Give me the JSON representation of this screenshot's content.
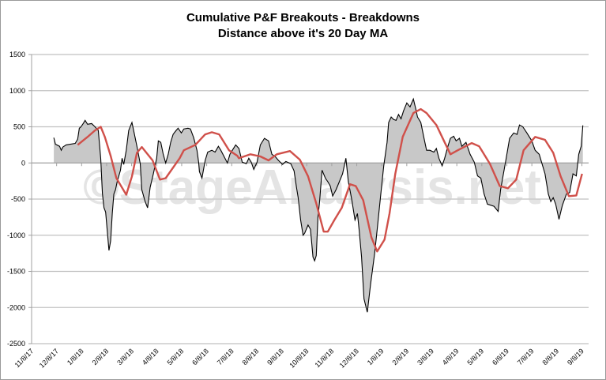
{
  "chart_data": {
    "type": "area",
    "title": "Cumulative P&F Breakouts - Breakdowns",
    "subtitle": "Distance above it's 20 Day MA",
    "watermark": "©StageAnalysis.net",
    "xlabel": "",
    "ylabel": "",
    "x_unit": "days since 11/8/17",
    "xlim": [
      0,
      677
    ],
    "ylim": [
      -2500,
      1500
    ],
    "yticks": [
      1500,
      1000,
      500,
      0,
      -500,
      -1000,
      -1500,
      -2000,
      -2500
    ],
    "xtick_labels": [
      "11/8/17",
      "12/8/17",
      "1/8/18",
      "2/8/18",
      "3/8/18",
      "4/8/18",
      "5/8/18",
      "6/8/18",
      "7/8/18",
      "8/8/18",
      "9/8/18",
      "10/8/18",
      "11/8/18",
      "12/8/18",
      "1/8/19",
      "2/8/19",
      "3/8/19",
      "4/8/19",
      "5/8/19",
      "6/8/19",
      "7/8/19",
      "8/8/19",
      "9/8/19"
    ],
    "xtick_spacing_days": 30.4,
    "grid": true,
    "legend": "none",
    "colors": {
      "series": "#000000",
      "fill": "#c8c8c8",
      "ma": "#d0504a",
      "grid": "#c0c0c0"
    },
    "series": [
      {
        "name": "Cumulative P&F Breakouts - Breakdowns",
        "points": [
          [
            27,
            350
          ],
          [
            29,
            260
          ],
          [
            34,
            230
          ],
          [
            36,
            175
          ],
          [
            38,
            220
          ],
          [
            42,
            250
          ],
          [
            53,
            270
          ],
          [
            56,
            330
          ],
          [
            58,
            480
          ],
          [
            60,
            500
          ],
          [
            63,
            550
          ],
          [
            65,
            590
          ],
          [
            68,
            535
          ],
          [
            73,
            545
          ],
          [
            77,
            500
          ],
          [
            81,
            450
          ],
          [
            84,
            60
          ],
          [
            86,
            -420
          ],
          [
            88,
            -620
          ],
          [
            90,
            -680
          ],
          [
            94,
            -1210
          ],
          [
            96,
            -1080
          ],
          [
            98,
            -700
          ],
          [
            100,
            -430
          ],
          [
            102,
            -370
          ],
          [
            104,
            -260
          ],
          [
            108,
            -100
          ],
          [
            110,
            65
          ],
          [
            112,
            -20
          ],
          [
            115,
            175
          ],
          [
            118,
            450
          ],
          [
            122,
            560
          ],
          [
            125,
            395
          ],
          [
            128,
            230
          ],
          [
            132,
            -10
          ],
          [
            134,
            -370
          ],
          [
            138,
            -535
          ],
          [
            141,
            -620
          ],
          [
            144,
            -340
          ],
          [
            148,
            -150
          ],
          [
            152,
            65
          ],
          [
            154,
            305
          ],
          [
            157,
            285
          ],
          [
            160,
            120
          ],
          [
            163,
            0
          ],
          [
            166,
            120
          ],
          [
            169,
            285
          ],
          [
            172,
            395
          ],
          [
            175,
            440
          ],
          [
            178,
            480
          ],
          [
            182,
            415
          ],
          [
            185,
            470
          ],
          [
            190,
            480
          ],
          [
            193,
            470
          ],
          [
            197,
            350
          ],
          [
            201,
            175
          ],
          [
            203,
            10
          ],
          [
            204,
            -120
          ],
          [
            207,
            -210
          ],
          [
            211,
            35
          ],
          [
            214,
            150
          ],
          [
            219,
            175
          ],
          [
            223,
            150
          ],
          [
            227,
            230
          ],
          [
            230,
            175
          ],
          [
            235,
            65
          ],
          [
            238,
            0
          ],
          [
            241,
            120
          ],
          [
            244,
            175
          ],
          [
            248,
            250
          ],
          [
            252,
            200
          ],
          [
            256,
            10
          ],
          [
            261,
            -10
          ],
          [
            264,
            65
          ],
          [
            267,
            10
          ],
          [
            270,
            -90
          ],
          [
            274,
            10
          ],
          [
            278,
            250
          ],
          [
            283,
            340
          ],
          [
            288,
            305
          ],
          [
            292,
            120
          ],
          [
            296,
            90
          ],
          [
            300,
            35
          ],
          [
            305,
            -20
          ],
          [
            309,
            20
          ],
          [
            315,
            -10
          ],
          [
            319,
            -110
          ],
          [
            322,
            -340
          ],
          [
            324,
            -480
          ],
          [
            327,
            -790
          ],
          [
            330,
            -1000
          ],
          [
            332,
            -970
          ],
          [
            336,
            -860
          ],
          [
            339,
            -920
          ],
          [
            342,
            -1300
          ],
          [
            344,
            -1355
          ],
          [
            346,
            -1280
          ],
          [
            348,
            -750
          ],
          [
            350,
            -535
          ],
          [
            353,
            -100
          ],
          [
            357,
            -210
          ],
          [
            360,
            -260
          ],
          [
            363,
            -320
          ],
          [
            366,
            -460
          ],
          [
            370,
            -370
          ],
          [
            374,
            -260
          ],
          [
            378,
            -150
          ],
          [
            382,
            65
          ],
          [
            385,
            -260
          ],
          [
            389,
            -500
          ],
          [
            393,
            -790
          ],
          [
            396,
            -700
          ],
          [
            398,
            -920
          ],
          [
            401,
            -1300
          ],
          [
            404,
            -1880
          ],
          [
            408,
            -2065
          ],
          [
            412,
            -1680
          ],
          [
            417,
            -1250
          ],
          [
            420,
            -920
          ],
          [
            424,
            -480
          ],
          [
            428,
            -40
          ],
          [
            432,
            285
          ],
          [
            434,
            560
          ],
          [
            437,
            635
          ],
          [
            440,
            600
          ],
          [
            443,
            590
          ],
          [
            446,
            670
          ],
          [
            449,
            610
          ],
          [
            452,
            720
          ],
          [
            456,
            830
          ],
          [
            460,
            775
          ],
          [
            464,
            885
          ],
          [
            467,
            745
          ],
          [
            469,
            635
          ],
          [
            473,
            560
          ],
          [
            477,
            340
          ],
          [
            480,
            175
          ],
          [
            484,
            175
          ],
          [
            489,
            150
          ],
          [
            492,
            200
          ],
          [
            495,
            65
          ],
          [
            499,
            -40
          ],
          [
            502,
            65
          ],
          [
            506,
            230
          ],
          [
            509,
            340
          ],
          [
            513,
            370
          ],
          [
            516,
            305
          ],
          [
            520,
            340
          ],
          [
            523,
            230
          ],
          [
            528,
            285
          ],
          [
            533,
            120
          ],
          [
            538,
            10
          ],
          [
            542,
            -180
          ],
          [
            546,
            -210
          ],
          [
            550,
            -430
          ],
          [
            554,
            -570
          ],
          [
            562,
            -600
          ],
          [
            567,
            -670
          ],
          [
            570,
            -370
          ],
          [
            576,
            10
          ],
          [
            581,
            340
          ],
          [
            586,
            415
          ],
          [
            590,
            395
          ],
          [
            593,
            525
          ],
          [
            597,
            500
          ],
          [
            602,
            415
          ],
          [
            608,
            305
          ],
          [
            612,
            175
          ],
          [
            617,
            120
          ],
          [
            624,
            -150
          ],
          [
            628,
            -430
          ],
          [
            631,
            -535
          ],
          [
            634,
            -480
          ],
          [
            637,
            -570
          ],
          [
            641,
            -780
          ],
          [
            645,
            -590
          ],
          [
            650,
            -430
          ],
          [
            654,
            -410
          ],
          [
            658,
            -150
          ],
          [
            662,
            -180
          ],
          [
            665,
            120
          ],
          [
            668,
            230
          ],
          [
            670,
            520
          ]
        ]
      },
      {
        "name": "20 Day MA",
        "points": [
          [
            56,
            250
          ],
          [
            62,
            305
          ],
          [
            69,
            370
          ],
          [
            77,
            450
          ],
          [
            84,
            500
          ],
          [
            89,
            360
          ],
          [
            96,
            100
          ],
          [
            103,
            -210
          ],
          [
            115,
            -440
          ],
          [
            122,
            -185
          ],
          [
            128,
            140
          ],
          [
            134,
            220
          ],
          [
            147,
            35
          ],
          [
            156,
            -230
          ],
          [
            163,
            -210
          ],
          [
            180,
            65
          ],
          [
            185,
            175
          ],
          [
            199,
            250
          ],
          [
            211,
            395
          ],
          [
            219,
            425
          ],
          [
            228,
            395
          ],
          [
            240,
            175
          ],
          [
            250,
            100
          ],
          [
            252,
            65
          ],
          [
            266,
            120
          ],
          [
            278,
            90
          ],
          [
            288,
            35
          ],
          [
            298,
            120
          ],
          [
            314,
            165
          ],
          [
            326,
            45
          ],
          [
            336,
            -185
          ],
          [
            346,
            -560
          ],
          [
            355,
            -950
          ],
          [
            360,
            -950
          ],
          [
            368,
            -790
          ],
          [
            377,
            -620
          ],
          [
            387,
            -295
          ],
          [
            394,
            -320
          ],
          [
            403,
            -515
          ],
          [
            413,
            -1030
          ],
          [
            420,
            -1225
          ],
          [
            429,
            -1060
          ],
          [
            435,
            -700
          ],
          [
            442,
            -150
          ],
          [
            451,
            360
          ],
          [
            464,
            690
          ],
          [
            473,
            745
          ],
          [
            480,
            690
          ],
          [
            492,
            525
          ],
          [
            502,
            285
          ],
          [
            509,
            120
          ],
          [
            518,
            175
          ],
          [
            535,
            275
          ],
          [
            544,
            230
          ],
          [
            557,
            -10
          ],
          [
            569,
            -320
          ],
          [
            579,
            -350
          ],
          [
            589,
            -230
          ],
          [
            598,
            175
          ],
          [
            612,
            360
          ],
          [
            624,
            320
          ],
          [
            634,
            140
          ],
          [
            643,
            -185
          ],
          [
            653,
            -460
          ],
          [
            662,
            -450
          ],
          [
            669,
            -150
          ]
        ]
      }
    ]
  }
}
